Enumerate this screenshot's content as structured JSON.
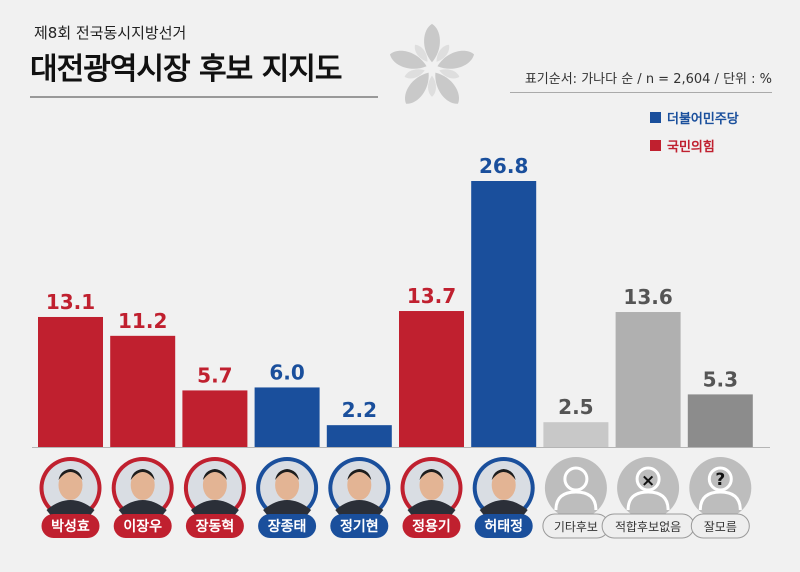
{
  "header": {
    "subtitle": "제8회 전국동시지방선거",
    "title": "대전광역시장 후보 지지도",
    "meta": "표기순서: 가나다 순 / n = 2,604 / 단위 : %"
  },
  "legend": [
    {
      "label": "더불어민주당",
      "color": "#1a4f9c"
    },
    {
      "label": "국민의힘",
      "color": "#c0202f"
    }
  ],
  "colors": {
    "red": "#c0202f",
    "blue": "#1a4f9c",
    "grey_light": "#c8c8c8",
    "grey_mid": "#b0b0b0",
    "grey_dark": "#8c8c8c"
  },
  "chart_data": {
    "type": "bar",
    "title": "대전광역시장 후보 지지도",
    "categories": [
      "박성효",
      "이장우",
      "장동혁",
      "장종태",
      "정기현",
      "정용기",
      "허태정",
      "기타후보",
      "적합후보없음",
      "잘모름"
    ],
    "values": [
      13.1,
      11.2,
      5.7,
      6.0,
      2.2,
      13.7,
      26.8,
      2.5,
      13.6,
      5.3
    ],
    "value_labels": [
      "13.1",
      "11.2",
      "5.7",
      "6.0",
      "2.2",
      "13.7",
      "26.8",
      "2.5",
      "13.6",
      "5.3"
    ],
    "party": [
      "red",
      "red",
      "red",
      "blue",
      "blue",
      "red",
      "blue",
      "grey_light",
      "grey_mid",
      "grey_dark"
    ],
    "avatar": [
      "photo",
      "photo",
      "photo",
      "photo",
      "photo",
      "photo",
      "photo",
      "person",
      "person-x",
      "person-question"
    ],
    "ylim": [
      0,
      28
    ],
    "grid": false,
    "legend_position": "top-right"
  }
}
